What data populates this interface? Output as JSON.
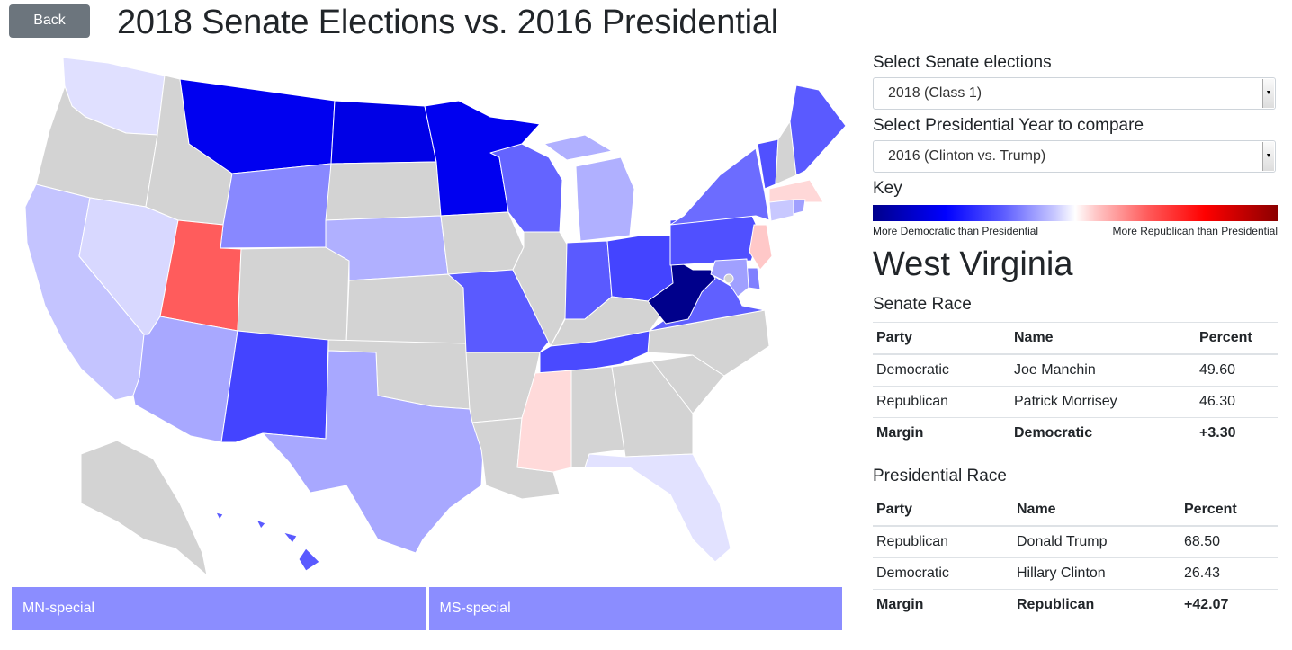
{
  "header": {
    "back_label": "Back",
    "title": "2018 Senate Elections vs. 2016 Presidential"
  },
  "controls": {
    "senate_label": "Select Senate elections",
    "senate_value": "2018 (Class 1)",
    "pres_label": "Select Presidential Year to compare",
    "pres_value": "2016 (Clinton vs. Trump)"
  },
  "key": {
    "title": "Key",
    "left_label": "More Democratic than Presidential",
    "right_label": "More Republican than Presidential",
    "colors": [
      "#00008b",
      "#0000ff",
      "#ffffff",
      "#ff0000",
      "#8b0000"
    ]
  },
  "selected_state": "West Virginia",
  "senate_race": {
    "title": "Senate Race",
    "headers": [
      "Party",
      "Name",
      "Percent"
    ],
    "rows": [
      [
        "Democratic",
        "Joe Manchin",
        "49.60"
      ],
      [
        "Republican",
        "Patrick Morrisey",
        "46.30"
      ]
    ],
    "margin": [
      "Margin",
      "Democratic",
      "+3.30"
    ]
  },
  "presidential_race": {
    "title": "Presidential Race",
    "headers": [
      "Party",
      "Name",
      "Percent"
    ],
    "rows": [
      [
        "Republican",
        "Donald Trump",
        "68.50"
      ],
      [
        "Democratic",
        "Hillary Clinton",
        "26.43"
      ]
    ],
    "margin": [
      "Margin",
      "Republican",
      "+42.07"
    ]
  },
  "special_elections": [
    "MN-special",
    "MS-special"
  ],
  "map_fills": {
    "WA": "#e0e0ff",
    "OR": "#d3d3d3",
    "CA": "#c4c4ff",
    "NV": "#d8d8ff",
    "ID": "#d3d3d3",
    "MT": "#0000f0",
    "WY": "#8888ff",
    "UT": "#ff5c5c",
    "AZ": "#a8a8ff",
    "CO": "#d3d3d3",
    "NM": "#4444ff",
    "ND": "#0000e6",
    "SD": "#d3d3d3",
    "NE": "#b0b0ff",
    "KS": "#d3d3d3",
    "OK": "#d3d3d3",
    "TX": "#a8a8ff",
    "MN": "#0000f0",
    "IA": "#d3d3d3",
    "MO": "#5a5aff",
    "AR": "#d3d3d3",
    "LA": "#d3d3d3",
    "WI": "#6464ff",
    "IL": "#d3d3d3",
    "MI": "#b0b0ff",
    "IN": "#5a5aff",
    "OH": "#4444ff",
    "KY": "#d3d3d3",
    "TN": "#4a4aff",
    "MS": "#ffdada",
    "AL": "#d3d3d3",
    "GA": "#d3d3d3",
    "FL": "#e2e2ff",
    "SC": "#d3d3d3",
    "NC": "#d3d3d3",
    "VA": "#6060ff",
    "WV": "#00008b",
    "PA": "#5050ff",
    "NY": "#6c6cff",
    "VT": "#5050ff",
    "NH": "#d3d3d3",
    "ME": "#5a5aff",
    "MA": "#ffd8d8",
    "CT": "#c8c8ff",
    "RI": "#a0a0ff",
    "NJ": "#ffc8c8",
    "DE": "#8080ff",
    "MD": "#a0a0ff",
    "AK": "#d3d3d3",
    "HI": "#5a5aff"
  }
}
